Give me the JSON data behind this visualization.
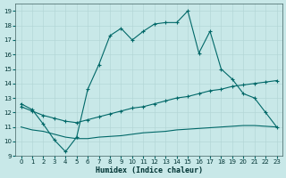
{
  "xlabel": "Humidex (Indice chaleur)",
  "xlim": [
    -0.5,
    23.5
  ],
  "ylim": [
    9,
    19.5
  ],
  "xticks": [
    0,
    1,
    2,
    3,
    4,
    5,
    6,
    7,
    8,
    9,
    10,
    11,
    12,
    13,
    14,
    15,
    16,
    17,
    18,
    19,
    20,
    21,
    22,
    23
  ],
  "yticks": [
    9,
    10,
    11,
    12,
    13,
    14,
    15,
    16,
    17,
    18,
    19
  ],
  "bg_color": "#c8e8e8",
  "line_color": "#006868",
  "line1_x": [
    0,
    1,
    2,
    3,
    4,
    5,
    6,
    7,
    8,
    9,
    10,
    11,
    12,
    13,
    14,
    15,
    16,
    17,
    18,
    19,
    20,
    21,
    22,
    23
  ],
  "line1_y": [
    12.6,
    12.2,
    11.2,
    10.1,
    9.3,
    10.3,
    13.6,
    15.3,
    17.3,
    17.8,
    17.0,
    17.6,
    18.1,
    18.2,
    18.2,
    19.0,
    16.1,
    17.6,
    15.0,
    14.3,
    13.3,
    13.0,
    12.0,
    11.0
  ],
  "line2_x": [
    0,
    1,
    2,
    3,
    4,
    5,
    6,
    7,
    8,
    9,
    10,
    11,
    12,
    13,
    14,
    15,
    16,
    17,
    18,
    19,
    20,
    21,
    22,
    23
  ],
  "line2_y": [
    12.4,
    12.1,
    11.8,
    11.6,
    11.4,
    11.3,
    11.5,
    11.7,
    11.9,
    12.1,
    12.3,
    12.4,
    12.6,
    12.8,
    13.0,
    13.1,
    13.3,
    13.5,
    13.6,
    13.8,
    13.9,
    14.0,
    14.1,
    14.2
  ],
  "line3_x": [
    0,
    1,
    2,
    3,
    4,
    5,
    6,
    7,
    8,
    9,
    10,
    11,
    12,
    13,
    14,
    15,
    16,
    17,
    18,
    19,
    20,
    21,
    22,
    23
  ],
  "line3_y": [
    11.0,
    10.8,
    10.7,
    10.5,
    10.3,
    10.2,
    10.2,
    10.3,
    10.35,
    10.4,
    10.5,
    10.6,
    10.65,
    10.7,
    10.8,
    10.85,
    10.9,
    10.95,
    11.0,
    11.05,
    11.1,
    11.1,
    11.05,
    11.0
  ]
}
